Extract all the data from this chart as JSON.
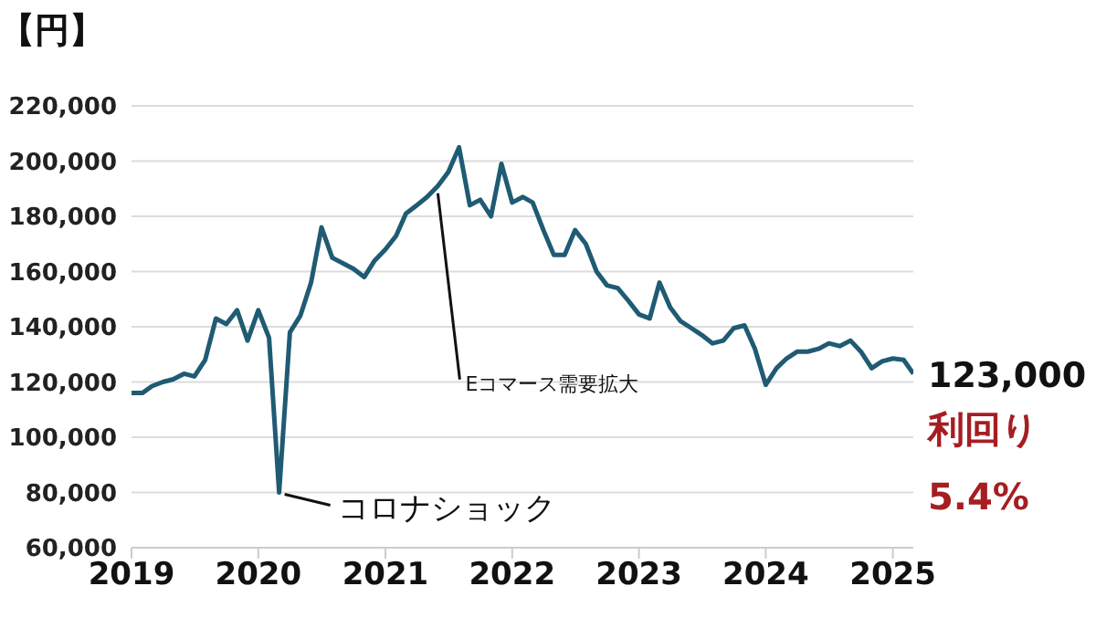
{
  "chart_data": {
    "type": "line",
    "ylabel": "【円】",
    "x": [
      "2019-01",
      "2019-02",
      "2019-03",
      "2019-04",
      "2019-05",
      "2019-06",
      "2019-07",
      "2019-08",
      "2019-09",
      "2019-10",
      "2019-11",
      "2019-12",
      "2020-01",
      "2020-02",
      "2020-03",
      "2020-04",
      "2020-05",
      "2020-06",
      "2020-07",
      "2020-08",
      "2020-09",
      "2020-10",
      "2020-11",
      "2020-12",
      "2021-01",
      "2021-02",
      "2021-03",
      "2021-04",
      "2021-05",
      "2021-06",
      "2021-07",
      "2021-08",
      "2021-09",
      "2021-10",
      "2021-11",
      "2021-12",
      "2022-01",
      "2022-02",
      "2022-03",
      "2022-04",
      "2022-05",
      "2022-06",
      "2022-07",
      "2022-08",
      "2022-09",
      "2022-10",
      "2022-11",
      "2022-12",
      "2023-01",
      "2023-02",
      "2023-03",
      "2023-04",
      "2023-05",
      "2023-06",
      "2023-07",
      "2023-08",
      "2023-09",
      "2023-10",
      "2023-11",
      "2023-12",
      "2024-01",
      "2024-02",
      "2024-03",
      "2024-04",
      "2024-05",
      "2024-06",
      "2024-07",
      "2024-08",
      "2024-09",
      "2024-10",
      "2024-11",
      "2024-12",
      "2025-01",
      "2025-02",
      "2025-03"
    ],
    "series": [
      {
        "color": "#1f5b73",
        "values": [
          116000,
          116000,
          118500,
          120000,
          121000,
          123000,
          122000,
          128000,
          143000,
          141000,
          146000,
          135000,
          146000,
          136000,
          80000,
          138000,
          144000,
          156000,
          176000,
          165000,
          163000,
          161000,
          158000,
          164000,
          168000,
          173000,
          181000,
          184000,
          187000,
          191000,
          196000,
          205000,
          184000,
          186000,
          180000,
          199000,
          185000,
          187000,
          185000,
          175000,
          166000,
          166000,
          175000,
          170000,
          160000,
          155000,
          154000,
          149500,
          144500,
          143000,
          156000,
          147000,
          142000,
          139500,
          137000,
          134000,
          135000,
          139500,
          140500,
          132000,
          119000,
          125000,
          128500,
          131000,
          131000,
          132000,
          134000,
          133000,
          135000,
          131000,
          125000,
          127500,
          128500,
          128000,
          123000
        ]
      }
    ],
    "xlim": [
      "2019-01",
      "2025-03"
    ],
    "xticks": [
      "2019",
      "2020",
      "2021",
      "2022",
      "2023",
      "2024",
      "2025"
    ],
    "ylim": [
      60000,
      220000
    ],
    "yticks": [
      {
        "value": 60000,
        "label": "60,000"
      },
      {
        "value": 80000,
        "label": "80,000"
      },
      {
        "value": 100000,
        "label": "100,000"
      },
      {
        "value": 120000,
        "label": "120,000"
      },
      {
        "value": 140000,
        "label": "140,000"
      },
      {
        "value": 160000,
        "label": "160,000"
      },
      {
        "value": 180000,
        "label": "180,000"
      },
      {
        "value": 200000,
        "label": "200,000"
      },
      {
        "value": 220000,
        "label": "220,000"
      }
    ],
    "grid": "y",
    "legend": false,
    "marker": "none",
    "line_style": "solid",
    "annotations": [
      {
        "text": "コロナショック",
        "x": "2020-03",
        "y": 80000
      },
      {
        "text": "Eコマース需要拡大",
        "x": "2021-06",
        "y": 191000
      },
      {
        "text": "123,000",
        "x": "2025-03",
        "y": 123000
      },
      "利回り",
      "5.4%"
    ]
  }
}
